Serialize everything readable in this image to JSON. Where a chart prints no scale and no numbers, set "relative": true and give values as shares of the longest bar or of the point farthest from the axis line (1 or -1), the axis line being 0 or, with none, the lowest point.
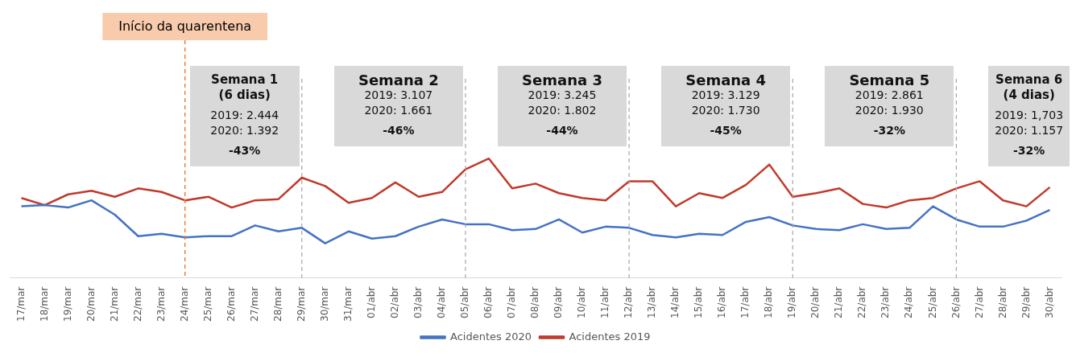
{
  "chart_data": {
    "type": "line",
    "relative": true,
    "legend": "bottom",
    "grid": false,
    "marker": "none",
    "line_style": "solid",
    "categories": [
      "17/mar",
      "18/mar",
      "19/mar",
      "20/mar",
      "21/mar",
      "22/mar",
      "23/mar",
      "24/mar",
      "25/mar",
      "26/mar",
      "27/mar",
      "28/mar",
      "29/mar",
      "30/mar",
      "31/mar",
      "01/abr",
      "02/abr",
      "03/abr",
      "04/abr",
      "05/abr",
      "06/abr",
      "07/abr",
      "08/abr",
      "09/abr",
      "10/abr",
      "11/abr",
      "12/abr",
      "13/abr",
      "14/abr",
      "15/abr",
      "16/abr",
      "17/abr",
      "18/abr",
      "19/abr",
      "20/abr",
      "21/abr",
      "22/abr",
      "23/abr",
      "24/abr",
      "25/abr",
      "26/abr",
      "27/abr",
      "28/abr",
      "29/abr",
      "30/abr"
    ],
    "series": [
      {
        "name": "Acidentes 2020",
        "color": "#4472c4",
        "values": [
          0.6,
          0.61,
          0.59,
          0.65,
          0.53,
          0.35,
          0.37,
          0.34,
          0.35,
          0.35,
          0.44,
          0.39,
          0.42,
          0.29,
          0.39,
          0.33,
          0.35,
          0.43,
          0.49,
          0.45,
          0.45,
          0.4,
          0.41,
          0.49,
          0.38,
          0.43,
          0.42,
          0.36,
          0.34,
          0.37,
          0.36,
          0.47,
          0.51,
          0.44,
          0.41,
          0.4,
          0.45,
          0.41,
          0.42,
          0.6,
          0.49,
          0.43,
          0.43,
          0.48,
          0.57
        ]
      },
      {
        "name": "Acidentes 2019",
        "color": "#c0392b",
        "values": [
          0.67,
          0.61,
          0.7,
          0.73,
          0.68,
          0.75,
          0.72,
          0.65,
          0.68,
          0.59,
          0.65,
          0.66,
          0.84,
          0.77,
          0.63,
          0.67,
          0.8,
          0.68,
          0.72,
          0.91,
          1.0,
          0.75,
          0.79,
          0.71,
          0.67,
          0.65,
          0.81,
          0.81,
          0.6,
          0.71,
          0.67,
          0.78,
          0.95,
          0.68,
          0.71,
          0.75,
          0.62,
          0.59,
          0.65,
          0.67,
          0.75,
          0.81,
          0.65,
          0.6,
          0.76
        ]
      }
    ],
    "ref_lines": [
      {
        "axis": "x",
        "value": "24/mar",
        "label": "Início da quarentena",
        "color": "#ed7d31",
        "line_style": "dashed"
      },
      {
        "axis": "x",
        "value": "29/mar",
        "color": "#a6a6a6",
        "line_style": "dashed"
      },
      {
        "axis": "x",
        "value": "05/abr",
        "color": "#a6a6a6",
        "line_style": "dashed"
      },
      {
        "axis": "x",
        "value": "12/abr",
        "color": "#a6a6a6",
        "line_style": "dashed"
      },
      {
        "axis": "x",
        "value": "19/abr",
        "color": "#a6a6a6",
        "line_style": "dashed"
      },
      {
        "axis": "x",
        "value": "26/abr",
        "color": "#a6a6a6",
        "line_style": "dashed"
      }
    ],
    "annotations": [
      "Semana 1\n(6 dias)\n2019: 2.444\n2020: 1.392\n-43%",
      "Semana 2\n2019: 3.107\n2020: 1.661\n-46%",
      "Semana 3\n2019: 3.245\n2020: 1.802\n-44%",
      "Semana 4\n2019: 3.129\n2020: 1.730\n-45%",
      "Semana 5\n2019: 2.861\n2020: 1.930\n-32%",
      "Semana 6\n(4 dias)\n2019: 1,703\n2020: 1.157\n-32%"
    ]
  }
}
